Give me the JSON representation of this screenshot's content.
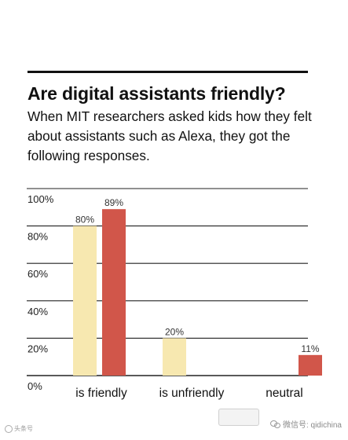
{
  "title": "Are digital assistants friendly?",
  "subtitle": "When MIT researchers asked kids how they felt about assistants such as Alexa, they got the following responses.",
  "colors": {
    "series_a": "#f7e8b0",
    "series_b": "#d1564a",
    "rule": "#222222"
  },
  "chart_data": {
    "type": "bar",
    "title": "",
    "xlabel": "",
    "ylabel": "",
    "ylim": [
      0,
      100
    ],
    "y_ticks": [
      "0%",
      "20%",
      "40%",
      "60%",
      "80%",
      "100%"
    ],
    "categories": [
      "is friendly",
      "is unfriendly",
      "neutral"
    ],
    "series": [
      {
        "values": [
          80,
          20,
          null
        ],
        "labels": [
          "80%",
          "20%",
          ""
        ]
      },
      {
        "values": [
          89,
          null,
          11
        ],
        "labels": [
          "89%",
          "",
          "11%"
        ]
      }
    ],
    "grid": true,
    "legend": "none"
  },
  "footer": {
    "watermark": "微信号: qidichina",
    "left_mark": "头条号"
  }
}
